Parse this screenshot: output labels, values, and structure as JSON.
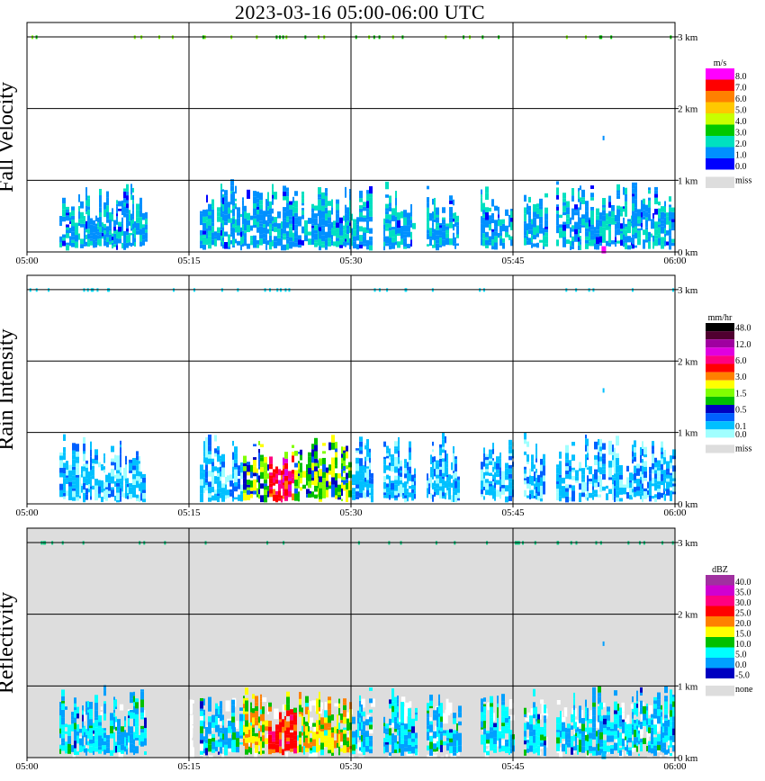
{
  "chart_data": [
    {
      "type": "heatmap",
      "title": "2023-03-16  05:00-06:00 UTC",
      "panels": [
        {
          "name": "fall-velocity",
          "ylabel": "Fall Velocity",
          "units": "m/s",
          "background": "#ffffff",
          "legend": {
            "labels": [
              "8.0",
              "7.0",
              "6.0",
              "5.0",
              "4.0",
              "3.0",
              "2.0",
              "1.0",
              "0.0"
            ],
            "colors": [
              "#ff00ff",
              "#ff0000",
              "#ff8000",
              "#ffc800",
              "#c8ff00",
              "#00c800",
              "#00e0c0",
              "#0090ff",
              "#0000ff"
            ],
            "missing_label": "miss",
            "missing_color": "#dddddd"
          }
        },
        {
          "name": "rain-intensity",
          "ylabel": "Rain Intensity",
          "units": "mm/hr",
          "background": "#ffffff",
          "legend": {
            "labels": [
              "48.0",
              "",
              "12.0",
              "",
              "6.0",
              "",
              "3.0",
              "",
              "1.5",
              "",
              "0.5",
              "",
              "0.1",
              "0.0"
            ],
            "colors": [
              "#000000",
              "#500030",
              "#a000a0",
              "#e000e0",
              "#ff0080",
              "#ff0000",
              "#ff8000",
              "#ffff00",
              "#80ff00",
              "#00c000",
              "#0000c0",
              "#0060ff",
              "#00c0ff",
              "#a0ffff"
            ],
            "missing_label": "miss",
            "missing_color": "#dddddd"
          }
        },
        {
          "name": "reflectivity",
          "ylabel": "Reflectivity",
          "units": "dBZ",
          "background": "#dddddd",
          "legend": {
            "labels": [
              "40.0",
              "35.0",
              "30.0",
              "25.0",
              "20.0",
              "15.0",
              "10.0",
              "5.0",
              "0.0",
              "-5.0"
            ],
            "colors": [
              "#a030a0",
              "#d000d0",
              "#ff0080",
              "#ff0000",
              "#ff8000",
              "#ffff00",
              "#00c000",
              "#00ffff",
              "#00a0ff",
              "#0000c0"
            ],
            "missing_label": "none",
            "missing_color": "#dddddd"
          }
        }
      ],
      "x": {
        "ticks": [
          "05:00",
          "05:15",
          "05:30",
          "05:45",
          "06:00"
        ],
        "range_minutes": [
          0,
          60
        ]
      },
      "y": {
        "ticks": [
          "0 km",
          "1 km",
          "2 km",
          "3 km"
        ],
        "range_km": [
          0,
          3.2
        ]
      },
      "echo_segments": [
        [
          3,
          11
        ],
        [
          15,
          15
        ],
        [
          16,
          16
        ],
        [
          16,
          19
        ],
        [
          19,
          26
        ],
        [
          26,
          27
        ],
        [
          27,
          32
        ],
        [
          33,
          36
        ],
        [
          37,
          40
        ],
        [
          42,
          45
        ],
        [
          46,
          48
        ],
        [
          49,
          53
        ],
        [
          53,
          56
        ],
        [
          56,
          59
        ],
        [
          59,
          60
        ]
      ],
      "core": {
        "start_min": 20,
        "end_min": 30,
        "peak_min": 23.5
      }
    }
  ]
}
